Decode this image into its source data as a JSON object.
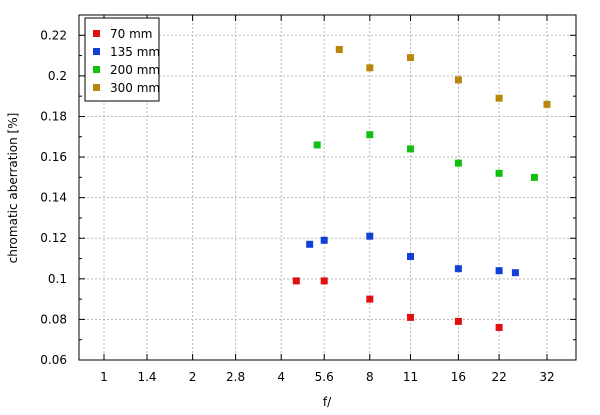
{
  "chart_data": {
    "type": "scatter",
    "title": "",
    "xlabel": "f/",
    "ylabel": "chromatic aberration [%]",
    "x_scale": "log",
    "x_tick_labels": [
      "1",
      "1.4",
      "2",
      "2.8",
      "4",
      "5.6",
      "8",
      "11",
      "16",
      "22",
      "32"
    ],
    "x_tick_values": [
      1,
      1.4,
      2,
      2.8,
      4,
      5.6,
      8,
      11,
      16,
      22,
      32
    ],
    "ylim": [
      0.06,
      0.23
    ],
    "y_tick_labels": [
      "0.06",
      "0.08",
      "0.1",
      "0.12",
      "0.14",
      "0.16",
      "0.18",
      "0.2",
      "0.22"
    ],
    "y_tick_values": [
      0.06,
      0.08,
      0.1,
      0.12,
      0.14,
      0.16,
      0.18,
      0.2,
      0.22
    ],
    "grid": true,
    "legend_position": "top-left",
    "series": [
      {
        "name": "70 mm",
        "color": "#e01010",
        "points": [
          [
            4.5,
            0.099
          ],
          [
            5.6,
            0.099
          ],
          [
            8,
            0.09
          ],
          [
            11,
            0.081
          ],
          [
            16,
            0.079
          ],
          [
            22,
            0.076
          ]
        ]
      },
      {
        "name": "135 mm",
        "color": "#1040d8",
        "points": [
          [
            5,
            0.117
          ],
          [
            5.6,
            0.119
          ],
          [
            8,
            0.121
          ],
          [
            11,
            0.111
          ],
          [
            16,
            0.105
          ],
          [
            22,
            0.104
          ],
          [
            25,
            0.103
          ]
        ]
      },
      {
        "name": "200 mm",
        "color": "#10c010",
        "points": [
          [
            5.3,
            0.166
          ],
          [
            8,
            0.171
          ],
          [
            11,
            0.164
          ],
          [
            16,
            0.157
          ],
          [
            22,
            0.152
          ],
          [
            29,
            0.15
          ]
        ]
      },
      {
        "name": "300 mm",
        "color": "#b8860b",
        "points": [
          [
            6.3,
            0.213
          ],
          [
            8,
            0.204
          ],
          [
            11,
            0.209
          ],
          [
            16,
            0.198
          ],
          [
            22,
            0.189
          ],
          [
            32,
            0.186
          ]
        ]
      }
    ]
  }
}
